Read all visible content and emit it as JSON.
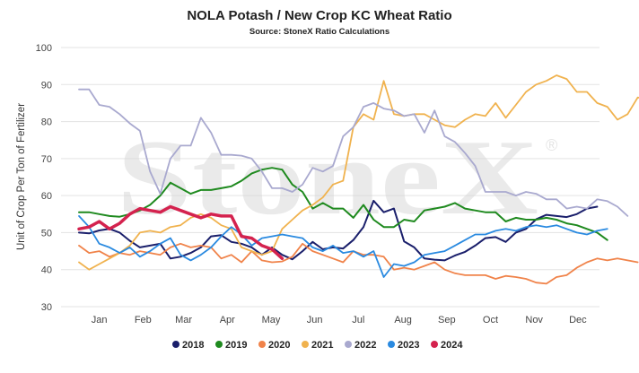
{
  "chart_data": {
    "type": "line",
    "title": "NOLA Potash / New Crop KC Wheat Ratio",
    "subtitle": "Source: StoneX Ratio Calculations",
    "ylabel": "Unit of Crop Per Ton of Fertilizer",
    "xlabel": "",
    "watermark": "StoneX",
    "watermark_mark": "®",
    "ylim": [
      30,
      100
    ],
    "yticks": [
      "30",
      "40",
      "50",
      "60",
      "70",
      "80",
      "90",
      "100"
    ],
    "xlim": [
      1,
      52
    ],
    "xticks": [
      {
        "label": "Jan",
        "week": 3
      },
      {
        "label": "Feb",
        "week": 7.3
      },
      {
        "label": "Mar",
        "week": 11.3
      },
      {
        "label": "Apr",
        "week": 15.6
      },
      {
        "label": "May",
        "week": 19.9
      },
      {
        "label": "Jun",
        "week": 24.2
      },
      {
        "label": "Jul",
        "week": 28.5
      },
      {
        "label": "Aug",
        "week": 32.9
      },
      {
        "label": "Sep",
        "week": 37.2
      },
      {
        "label": "Oct",
        "week": 41.5
      },
      {
        "label": "Nov",
        "week": 45.8
      },
      {
        "label": "Dec",
        "week": 50.1
      }
    ],
    "grid": true,
    "legend_position": "bottom",
    "series": [
      {
        "name": "2018",
        "color": "#1a1f6b",
        "width": 2,
        "x_start": 1,
        "values": [
          50,
          49.8,
          50.6,
          51,
          50,
          47.8,
          46,
          46.5,
          47,
          43,
          43.5,
          44.5,
          46,
          49,
          49.3,
          47.5,
          47,
          46,
          44,
          46,
          44,
          42.8,
          45,
          47.5,
          45.5,
          46,
          45.7,
          48,
          51.5,
          58.6,
          55.5,
          56.5,
          47.6,
          46,
          43,
          42.7,
          42.5,
          43.8,
          44.8,
          46.5,
          48.5,
          48.8,
          47.5,
          50,
          51,
          53.6,
          54.8,
          54.5,
          54.2,
          55,
          56.5,
          57
        ]
      },
      {
        "name": "2019",
        "color": "#1f8a1f",
        "width": 2,
        "x_start": 1,
        "values": [
          55.5,
          55.5,
          55,
          54.5,
          54.3,
          55,
          56,
          57.5,
          60,
          63.5,
          62,
          60.5,
          61.5,
          61.5,
          62,
          62.5,
          64,
          66,
          67,
          67.5,
          67,
          63,
          61,
          56.5,
          58,
          56.5,
          56.5,
          54,
          57.5,
          53.5,
          51.5,
          51.5,
          53.5,
          53,
          56,
          56.5,
          57,
          58,
          56.5,
          56,
          55.5,
          55.5,
          53,
          54,
          53.5,
          53.5,
          54,
          53.5,
          52.5,
          52,
          51,
          50,
          48
        ]
      },
      {
        "name": "2020",
        "color": "#f0834a",
        "width": 1.8,
        "x_start": 1,
        "values": [
          46.5,
          44.5,
          45,
          43.5,
          44.5,
          44,
          45,
          44.5,
          44,
          46,
          47,
          46,
          46.5,
          46,
          43,
          44,
          42,
          45,
          42.5,
          42,
          42.2,
          43.5,
          47,
          45,
          44,
          43,
          42,
          45,
          44,
          44,
          43.5,
          40,
          40.5,
          40,
          41,
          42,
          40,
          39,
          38.5,
          38.5,
          38.5,
          37.5,
          38.3,
          38,
          37.5,
          36.5,
          36.2,
          38,
          38.5,
          40.5,
          42,
          43,
          42.5,
          43,
          42.5,
          42
        ]
      },
      {
        "name": "2021",
        "color": "#f0b24e",
        "width": 1.8,
        "x_start": 1,
        "values": [
          42,
          40,
          41.5,
          43,
          44.5,
          46.5,
          50,
          50.5,
          50,
          51.5,
          52,
          54,
          55,
          54,
          52,
          51,
          46,
          45,
          44,
          45,
          51,
          53.5,
          56,
          57.5,
          59.5,
          63,
          64,
          78.5,
          82,
          80.5,
          91,
          82,
          81.5,
          82,
          82,
          80.5,
          79,
          78.5,
          80.5,
          82,
          81.5,
          85,
          81,
          84.5,
          88,
          90,
          91,
          92.5,
          91.5,
          88,
          88,
          85,
          84,
          80.5,
          82,
          86.5,
          86,
          80.5
        ]
      },
      {
        "name": "2022",
        "color": "#a9a9cf",
        "width": 1.8,
        "x_start": 1,
        "values": [
          88.7,
          88.7,
          84.5,
          84,
          82,
          79.5,
          77.5,
          66.5,
          60.5,
          70,
          73.5,
          73.5,
          81,
          77,
          71,
          71,
          70.8,
          70,
          66.5,
          62,
          62,
          61,
          63,
          67.5,
          66.5,
          68,
          76,
          78.5,
          84,
          85,
          83.5,
          83,
          81.5,
          82,
          77,
          83,
          76,
          74.5,
          71.5,
          68,
          61,
          61,
          61,
          60,
          61,
          60.5,
          59,
          59,
          56.5,
          57,
          56.5,
          59,
          58.5,
          57,
          54.5
        ]
      },
      {
        "name": "2023",
        "color": "#2a8ae0",
        "width": 1.8,
        "x_start": 1,
        "values": [
          54.5,
          51.5,
          47,
          46,
          44.5,
          46,
          43.5,
          45,
          47,
          48.5,
          44,
          42.5,
          44,
          46,
          49,
          51.5,
          49.5,
          46.5,
          48.5,
          49,
          49.5,
          49,
          48.5,
          46,
          45,
          46.5,
          44.5,
          45,
          43.5,
          45,
          38,
          41.5,
          41,
          42,
          44,
          44.5,
          45,
          46.5,
          48,
          49.5,
          49.5,
          50.5,
          51,
          50.5,
          51.5,
          52,
          51.5,
          52,
          51,
          50,
          49.5,
          50.5,
          51
        ]
      },
      {
        "name": "2024",
        "color": "#d4224e",
        "width": 3.5,
        "x_start": 1,
        "values": [
          51,
          51.5,
          53,
          51,
          52.5,
          55,
          56.5,
          56,
          55.5,
          57,
          56,
          55,
          54,
          55,
          54.5,
          54.5,
          49,
          48.5,
          46.5,
          45.5,
          43
        ]
      }
    ]
  }
}
